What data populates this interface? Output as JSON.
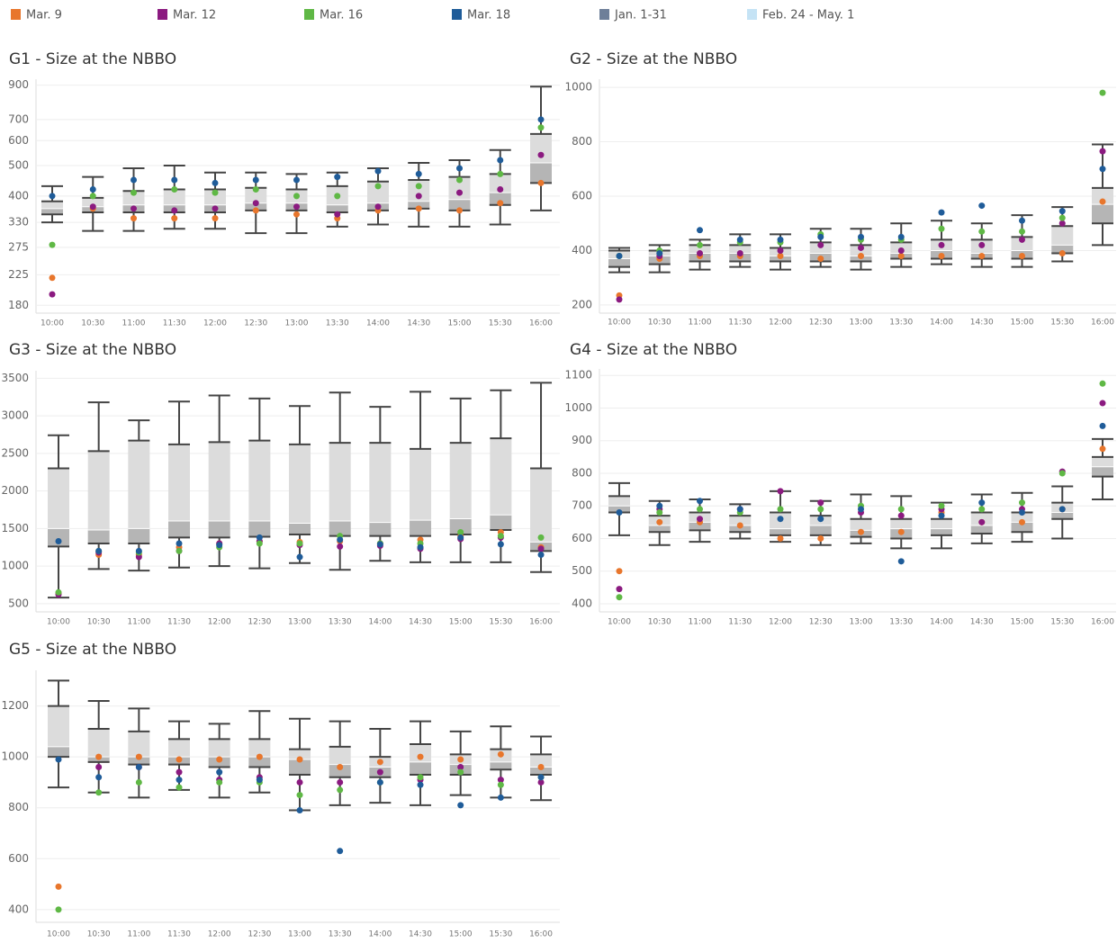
{
  "legend": [
    {
      "name": "Mar. 9",
      "color": "#e8762c"
    },
    {
      "name": "Mar. 12",
      "color": "#8b1a80"
    },
    {
      "name": "Mar. 16",
      "color": "#5fb845"
    },
    {
      "name": "Mar. 18",
      "color": "#1f5c99"
    },
    {
      "name": "Jan. 1-31",
      "color": "#6e7f99"
    },
    {
      "name": "Feb. 24 - May. 1",
      "color": "#c5e3f5"
    }
  ],
  "chart_data": [
    {
      "type": "box",
      "title": "G1 - Size at the NBBO",
      "log": true,
      "ylim": [
        170,
        940
      ],
      "yticks": [
        180,
        225,
        275,
        330,
        400,
        500,
        600,
        700,
        900
      ],
      "categories": [
        "10:00",
        "10:30",
        "11:00",
        "11:30",
        "12:00",
        "12:30",
        "13:00",
        "13:30",
        "14:00",
        "14:30",
        "15:00",
        "15:30",
        "16:00"
      ],
      "boxes": {
        "low": [
          330,
          310,
          310,
          315,
          315,
          305,
          305,
          320,
          325,
          320,
          320,
          325,
          360
        ],
        "q1": [
          350,
          355,
          355,
          355,
          355,
          360,
          360,
          355,
          360,
          365,
          360,
          375,
          440
        ],
        "median": [
          365,
          370,
          375,
          375,
          375,
          380,
          380,
          375,
          380,
          385,
          390,
          410,
          510
        ],
        "q3": [
          385,
          395,
          415,
          420,
          420,
          425,
          420,
          430,
          445,
          450,
          460,
          470,
          630
        ],
        "high": [
          430,
          460,
          490,
          500,
          475,
          475,
          470,
          475,
          490,
          510,
          520,
          560,
          890
        ]
      },
      "points": [
        [
          220,
          365,
          340,
          340,
          340,
          360,
          350,
          340,
          360,
          365,
          360,
          380,
          440
        ],
        [
          195,
          370,
          365,
          360,
          365,
          380,
          370,
          350,
          370,
          400,
          410,
          420,
          540
        ],
        [
          280,
          400,
          410,
          420,
          410,
          420,
          400,
          400,
          430,
          430,
          450,
          470,
          660
        ],
        [
          400,
          420,
          450,
          450,
          440,
          450,
          450,
          460,
          480,
          470,
          490,
          520,
          700
        ]
      ]
    },
    {
      "type": "box",
      "title": "G2 - Size at the NBBO",
      "log": false,
      "ylim": [
        170,
        1030
      ],
      "yticks": [
        200,
        400,
        600,
        800,
        1000
      ],
      "categories": [
        "10:00",
        "10:30",
        "11:00",
        "11:30",
        "12:00",
        "12:30",
        "13:00",
        "13:30",
        "14:00",
        "14:30",
        "15:00",
        "15:30",
        "16:00"
      ],
      "boxes": {
        "low": [
          320,
          320,
          330,
          340,
          330,
          340,
          330,
          340,
          350,
          340,
          340,
          360,
          420
        ],
        "q1": [
          340,
          350,
          360,
          360,
          360,
          360,
          360,
          370,
          370,
          370,
          370,
          390,
          500
        ],
        "median": [
          370,
          380,
          390,
          390,
          380,
          390,
          380,
          390,
          400,
          390,
          400,
          420,
          570
        ],
        "q3": [
          400,
          400,
          420,
          420,
          410,
          430,
          420,
          430,
          440,
          440,
          450,
          490,
          630
        ],
        "high": [
          410,
          420,
          440,
          460,
          460,
          480,
          480,
          500,
          510,
          500,
          530,
          560,
          790
        ]
      },
      "points": [
        [
          235,
          370,
          380,
          380,
          380,
          370,
          380,
          380,
          380,
          380,
          380,
          390,
          580
        ],
        [
          220,
          380,
          390,
          390,
          400,
          420,
          410,
          400,
          420,
          420,
          440,
          500,
          765
        ],
        [
          380,
          400,
          420,
          430,
          430,
          460,
          440,
          440,
          480,
          470,
          470,
          520,
          980
        ],
        [
          380,
          390,
          475,
          440,
          440,
          450,
          450,
          450,
          540,
          565,
          510,
          545,
          700
        ]
      ]
    },
    {
      "type": "box",
      "title": "G3 - Size at the NBBO",
      "log": false,
      "ylim": [
        390,
        3600
      ],
      "yticks": [
        500,
        1000,
        1500,
        2000,
        2500,
        3000,
        3500
      ],
      "categories": [
        "10:00",
        "10:30",
        "11:00",
        "11:30",
        "12:00",
        "12:30",
        "13:00",
        "13:30",
        "14:00",
        "14:30",
        "15:00",
        "15:30",
        "16:00"
      ],
      "boxes": {
        "low": [
          580,
          960,
          940,
          980,
          1000,
          970,
          1040,
          950,
          1070,
          1050,
          1050,
          1050,
          920
        ],
        "q1": [
          1260,
          1300,
          1300,
          1380,
          1380,
          1390,
          1420,
          1400,
          1400,
          1400,
          1420,
          1480,
          1200
        ],
        "median": [
          1500,
          1480,
          1500,
          1600,
          1600,
          1600,
          1570,
          1600,
          1580,
          1610,
          1630,
          1680,
          1320
        ],
        "q3": [
          2300,
          2530,
          2670,
          2620,
          2650,
          2670,
          2620,
          2640,
          2640,
          2560,
          2640,
          2700,
          2300
        ],
        "high": [
          2740,
          3180,
          2940,
          3190,
          3270,
          3230,
          3130,
          3310,
          3120,
          3320,
          3230,
          3340,
          3440
        ]
      },
      "points": [
        [
          640,
          1150,
          1150,
          1250,
          1300,
          1330,
          1320,
          1330,
          1300,
          1350,
          1400,
          1450,
          1250
        ],
        [
          620,
          1180,
          1120,
          1200,
          1300,
          1330,
          1280,
          1260,
          1270,
          1230,
          1360,
          1380,
          1230
        ],
        [
          650,
          1200,
          1180,
          1200,
          1250,
          1300,
          1300,
          1400,
          1300,
          1300,
          1450,
          1400,
          1380
        ],
        [
          1330,
          1200,
          1200,
          1300,
          1280,
          1380,
          1120,
          1350,
          1290,
          1250,
          1380,
          1290,
          1150
        ]
      ]
    },
    {
      "type": "box",
      "title": "G4 - Size at the NBBO",
      "log": false,
      "ylim": [
        375,
        1120
      ],
      "yticks": [
        400,
        500,
        600,
        700,
        800,
        900,
        1000,
        1100
      ],
      "categories": [
        "10:00",
        "10:30",
        "11:00",
        "11:30",
        "12:00",
        "12:30",
        "13:00",
        "13:30",
        "14:00",
        "14:30",
        "15:00",
        "15:30",
        "16:00"
      ],
      "boxes": {
        "low": [
          610,
          580,
          590,
          600,
          590,
          580,
          585,
          570,
          570,
          585,
          590,
          600,
          720
        ],
        "q1": [
          680,
          620,
          625,
          620,
          610,
          610,
          605,
          600,
          610,
          615,
          620,
          660,
          790
        ],
        "median": [
          700,
          640,
          650,
          640,
          630,
          640,
          625,
          630,
          630,
          640,
          650,
          680,
          820
        ],
        "q3": [
          730,
          670,
          680,
          670,
          680,
          670,
          660,
          660,
          660,
          680,
          680,
          710,
          850
        ],
        "high": [
          770,
          715,
          720,
          705,
          745,
          715,
          735,
          730,
          710,
          735,
          740,
          760,
          905
        ]
      },
      "points": [
        [
          500,
          650,
          650,
          640,
          600,
          600,
          620,
          620,
          680,
          650,
          650,
          690,
          875
        ],
        [
          445,
          690,
          660,
          690,
          745,
          710,
          680,
          670,
          690,
          650,
          690,
          805,
          1015
        ],
        [
          420,
          680,
          690,
          680,
          690,
          690,
          700,
          690,
          700,
          690,
          710,
          800,
          1075
        ],
        [
          680,
          700,
          715,
          690,
          660,
          660,
          690,
          530,
          670,
          710,
          680,
          690,
          945
        ]
      ]
    },
    {
      "type": "box",
      "title": "G5 - Size at the NBBO",
      "log": false,
      "ylim": [
        350,
        1340
      ],
      "yticks": [
        400,
        600,
        800,
        1000,
        1200
      ],
      "categories": [
        "10:00",
        "10:30",
        "11:00",
        "11:30",
        "12:00",
        "12:30",
        "13:00",
        "13:30",
        "14:00",
        "14:30",
        "15:00",
        "15:30",
        "16:00"
      ],
      "boxes": {
        "low": [
          880,
          860,
          840,
          870,
          840,
          860,
          790,
          810,
          820,
          810,
          850,
          840,
          830
        ],
        "q1": [
          1000,
          980,
          970,
          970,
          960,
          960,
          930,
          920,
          920,
          930,
          930,
          950,
          930
        ],
        "median": [
          1040,
          1000,
          1000,
          1000,
          1000,
          1000,
          990,
          970,
          960,
          980,
          970,
          980,
          960
        ],
        "q3": [
          1200,
          1110,
          1100,
          1070,
          1070,
          1070,
          1030,
          1040,
          1000,
          1050,
          1010,
          1030,
          1010
        ],
        "high": [
          1300,
          1220,
          1190,
          1140,
          1130,
          1180,
          1150,
          1140,
          1110,
          1140,
          1100,
          1120,
          1080
        ]
      },
      "points": [
        [
          490,
          1000,
          1000,
          990,
          990,
          1000,
          990,
          960,
          980,
          1000,
          990,
          1010,
          960
        ],
        [
          null,
          960,
          960,
          940,
          910,
          920,
          900,
          900,
          940,
          910,
          960,
          910,
          900
        ],
        [
          400,
          860,
          900,
          880,
          900,
          900,
          850,
          870,
          900,
          920,
          940,
          890,
          920
        ],
        [
          990,
          920,
          960,
          910,
          940,
          910,
          790,
          630,
          900,
          890,
          810,
          840,
          920
        ]
      ]
    }
  ]
}
